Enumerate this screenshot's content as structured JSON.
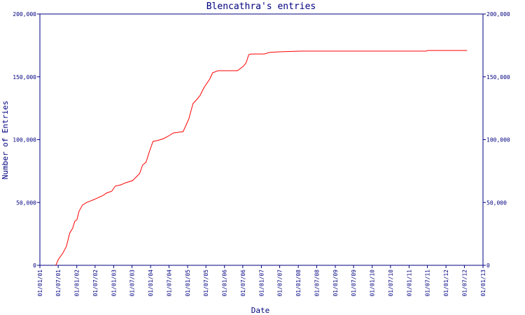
{
  "chart_data": {
    "type": "line",
    "title": "Blencathra's entries",
    "x_label": "Date",
    "y_label": "Number of Entries",
    "x": [
      "07/06/01",
      "05/07/01",
      "15/08/01",
      "20/09/01",
      "23/10/01",
      "21/11/01",
      "12/12/01",
      "02/01/02",
      "23/01/02",
      "27/02/02",
      "08/04/02",
      "23/06/02",
      "21/09/02",
      "18/10/02",
      "13/12/02",
      "17/01/03",
      "12/03/03",
      "29/04/03",
      "07/07/03",
      "18/08/03",
      "15/09/03",
      "13/10/03",
      "17/11/03",
      "21/12/03",
      "25/01/04",
      "06/03/04",
      "07/05/04",
      "18/06/04",
      "13/08/04",
      "18/11/04",
      "13/01/05",
      "23/02/05",
      "28/03/05",
      "02/05/05",
      "13/06/05",
      "08/08/05",
      "05/09/05",
      "29/10/05",
      "10/05/06",
      "05/07/06",
      "02/08/06",
      "29/08/06",
      "20/09/06",
      "29/01/07",
      "23/03/07",
      "29/06/07",
      "23/01/08",
      "20/06/11",
      "04/07/11",
      "27/07/12"
    ],
    "series": [
      {
        "name": "Entries",
        "color": "#ff0000",
        "values": [
          0,
          5000,
          9500,
          15000,
          25600,
          29500,
          35000,
          36200,
          43000,
          48000,
          50000,
          52400,
          55700,
          57400,
          59000,
          63000,
          64000,
          65700,
          67400,
          70800,
          73000,
          79700,
          82000,
          90800,
          98600,
          99200,
          100800,
          102500,
          105300,
          106400,
          116400,
          128700,
          131500,
          134800,
          141500,
          148200,
          153200,
          154900,
          154900,
          158300,
          161000,
          167700,
          168200,
          168200,
          169400,
          169900,
          170500,
          170500,
          171000,
          171000
        ]
      }
    ],
    "xlim": [
      "01/01/01",
      "01/01/13"
    ],
    "xticks": [
      "01/01/01",
      "01/07/01",
      "01/01/02",
      "01/07/02",
      "01/01/03",
      "01/07/03",
      "01/01/04",
      "01/07/04",
      "01/01/05",
      "01/07/05",
      "01/01/06",
      "01/07/06",
      "01/01/07",
      "01/07/07",
      "01/01/08",
      "01/07/08",
      "01/01/09",
      "01/07/09",
      "01/01/10",
      "01/07/10",
      "01/01/11",
      "01/07/11",
      "01/01/12",
      "01/07/12",
      "01/01/13"
    ],
    "ylim": [
      0,
      200000
    ],
    "yticks": [
      0,
      {
        "value": 50000,
        "label": "50,000"
      },
      {
        "value": 100000,
        "label": "100,000"
      },
      {
        "value": 150000,
        "label": "150,000"
      },
      {
        "value": 200000,
        "label": "200,000"
      }
    ],
    "axis_color": "#000080"
  }
}
